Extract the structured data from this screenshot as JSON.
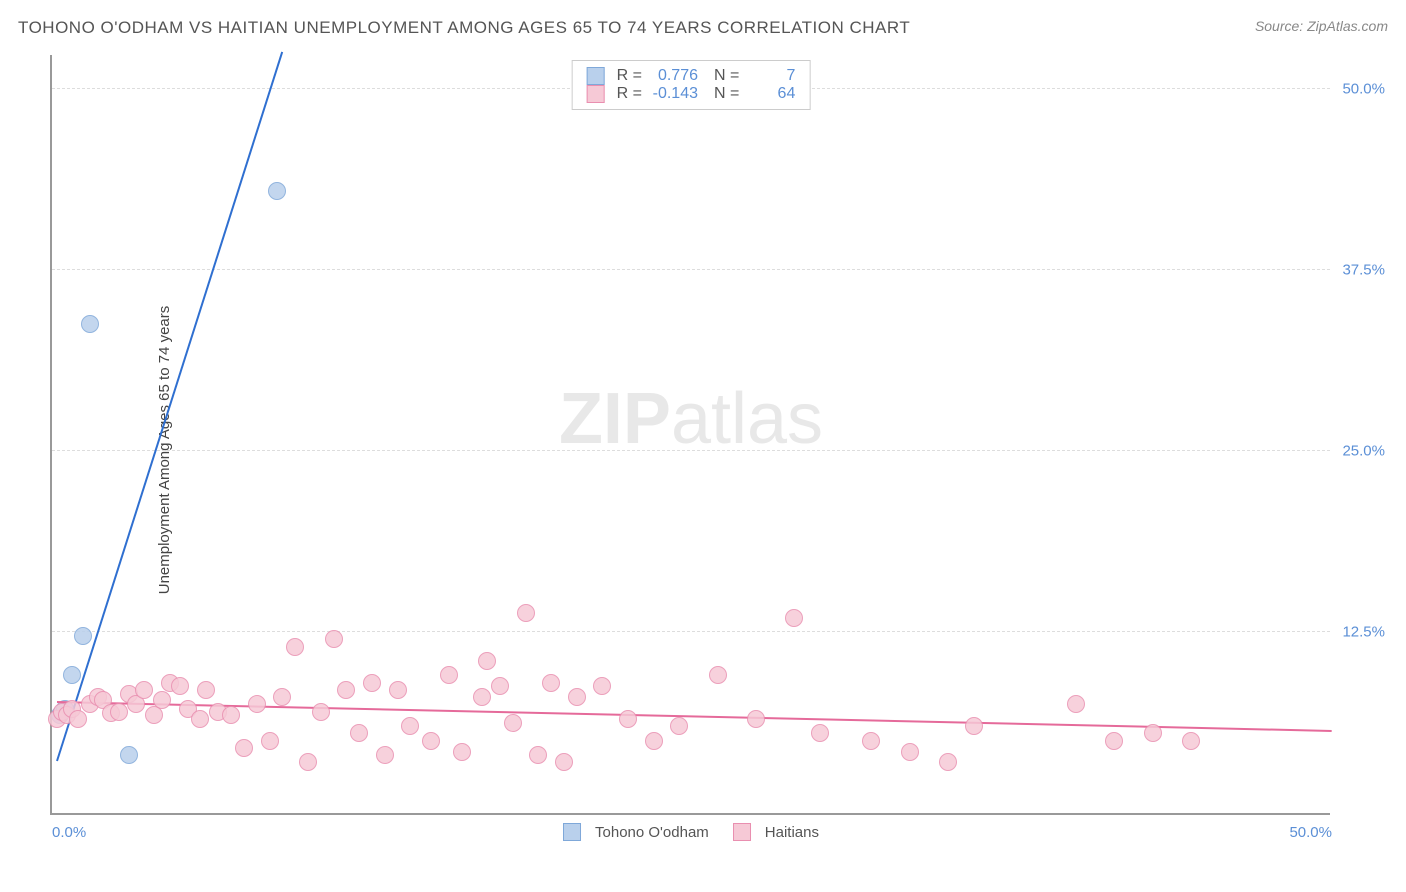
{
  "title": "TOHONO O'ODHAM VS HAITIAN UNEMPLOYMENT AMONG AGES 65 TO 74 YEARS CORRELATION CHART",
  "source": "Source: ZipAtlas.com",
  "watermark_bold": "ZIP",
  "watermark_rest": "atlas",
  "y_axis_title": "Unemployment Among Ages 65 to 74 years",
  "chart": {
    "type": "scatter",
    "xlim": [
      0,
      50
    ],
    "ylim": [
      0,
      52.5
    ],
    "x_ticks": [
      {
        "pos": 0,
        "label": "0.0%"
      },
      {
        "pos": 50,
        "label": "50.0%"
      }
    ],
    "y_ticks": [
      {
        "pos": 12.5,
        "label": "12.5%"
      },
      {
        "pos": 25.0,
        "label": "25.0%"
      },
      {
        "pos": 37.5,
        "label": "37.5%"
      },
      {
        "pos": 50.0,
        "label": "50.0%"
      }
    ],
    "grid_color": "#dddddd",
    "background_color": "#ffffff",
    "series": [
      {
        "name": "Tohono O'odham",
        "color_fill": "#b9d0ec",
        "color_stroke": "#7fa8d9",
        "line_color": "#2f6fd0",
        "marker_radius": 9,
        "R": "0.776",
        "N": "7",
        "trend": {
          "x1": 0.2,
          "y1": 3.5,
          "x2": 9.0,
          "y2": 52.5
        },
        "points": [
          {
            "x": 0.3,
            "y": 6.8
          },
          {
            "x": 0.5,
            "y": 7.2
          },
          {
            "x": 0.8,
            "y": 9.5
          },
          {
            "x": 1.2,
            "y": 12.2
          },
          {
            "x": 1.5,
            "y": 33.8
          },
          {
            "x": 3.0,
            "y": 4.0
          },
          {
            "x": 8.8,
            "y": 43.0
          }
        ]
      },
      {
        "name": "Haitians",
        "color_fill": "#f6c9d6",
        "color_stroke": "#e98fb0",
        "line_color": "#e56a9a",
        "marker_radius": 9,
        "R": "-0.143",
        "N": "64",
        "trend": {
          "x1": 0.2,
          "y1": 7.6,
          "x2": 50,
          "y2": 5.6
        },
        "points": [
          {
            "x": 0.2,
            "y": 6.5
          },
          {
            "x": 0.4,
            "y": 7.0
          },
          {
            "x": 0.6,
            "y": 6.8
          },
          {
            "x": 0.8,
            "y": 7.2
          },
          {
            "x": 1.0,
            "y": 6.5
          },
          {
            "x": 1.5,
            "y": 7.5
          },
          {
            "x": 1.8,
            "y": 8.0
          },
          {
            "x": 2.0,
            "y": 7.8
          },
          {
            "x": 2.3,
            "y": 6.9
          },
          {
            "x": 2.6,
            "y": 7.0
          },
          {
            "x": 3.0,
            "y": 8.2
          },
          {
            "x": 3.3,
            "y": 7.5
          },
          {
            "x": 3.6,
            "y": 8.5
          },
          {
            "x": 4.0,
            "y": 6.8
          },
          {
            "x": 4.3,
            "y": 7.8
          },
          {
            "x": 4.6,
            "y": 9.0
          },
          {
            "x": 5.0,
            "y": 8.8
          },
          {
            "x": 5.3,
            "y": 7.2
          },
          {
            "x": 5.8,
            "y": 6.5
          },
          {
            "x": 6.0,
            "y": 8.5
          },
          {
            "x": 6.5,
            "y": 7.0
          },
          {
            "x": 7.0,
            "y": 6.8
          },
          {
            "x": 7.5,
            "y": 4.5
          },
          {
            "x": 8.0,
            "y": 7.5
          },
          {
            "x": 8.5,
            "y": 5.0
          },
          {
            "x": 9.0,
            "y": 8.0
          },
          {
            "x": 9.5,
            "y": 11.5
          },
          {
            "x": 10.0,
            "y": 3.5
          },
          {
            "x": 10.5,
            "y": 7.0
          },
          {
            "x": 11.0,
            "y": 12.0
          },
          {
            "x": 11.5,
            "y": 8.5
          },
          {
            "x": 12.0,
            "y": 5.5
          },
          {
            "x": 12.5,
            "y": 9.0
          },
          {
            "x": 13.0,
            "y": 4.0
          },
          {
            "x": 13.5,
            "y": 8.5
          },
          {
            "x": 14.0,
            "y": 6.0
          },
          {
            "x": 14.8,
            "y": 5.0
          },
          {
            "x": 15.5,
            "y": 9.5
          },
          {
            "x": 16.0,
            "y": 4.2
          },
          {
            "x": 16.8,
            "y": 8.0
          },
          {
            "x": 17.0,
            "y": 10.5
          },
          {
            "x": 17.5,
            "y": 8.8
          },
          {
            "x": 18.0,
            "y": 6.2
          },
          {
            "x": 18.5,
            "y": 13.8
          },
          {
            "x": 19.0,
            "y": 4.0
          },
          {
            "x": 19.5,
            "y": 9.0
          },
          {
            "x": 20.0,
            "y": 3.5
          },
          {
            "x": 20.5,
            "y": 8.0
          },
          {
            "x": 21.5,
            "y": 8.8
          },
          {
            "x": 22.5,
            "y": 6.5
          },
          {
            "x": 23.5,
            "y": 5.0
          },
          {
            "x": 24.5,
            "y": 6.0
          },
          {
            "x": 26.0,
            "y": 9.5
          },
          {
            "x": 27.5,
            "y": 6.5
          },
          {
            "x": 29.0,
            "y": 13.5
          },
          {
            "x": 30.0,
            "y": 5.5
          },
          {
            "x": 32.0,
            "y": 5.0
          },
          {
            "x": 33.5,
            "y": 4.2
          },
          {
            "x": 35.0,
            "y": 3.5
          },
          {
            "x": 36.0,
            "y": 6.0
          },
          {
            "x": 40.0,
            "y": 7.5
          },
          {
            "x": 41.5,
            "y": 5.0
          },
          {
            "x": 43.0,
            "y": 5.5
          },
          {
            "x": 44.5,
            "y": 5.0
          }
        ]
      }
    ]
  },
  "legend_bottom": [
    {
      "label": "Tohono O'odham",
      "fill": "#b9d0ec",
      "stroke": "#7fa8d9"
    },
    {
      "label": "Haitians",
      "fill": "#f6c9d6",
      "stroke": "#e98fb0"
    }
  ]
}
